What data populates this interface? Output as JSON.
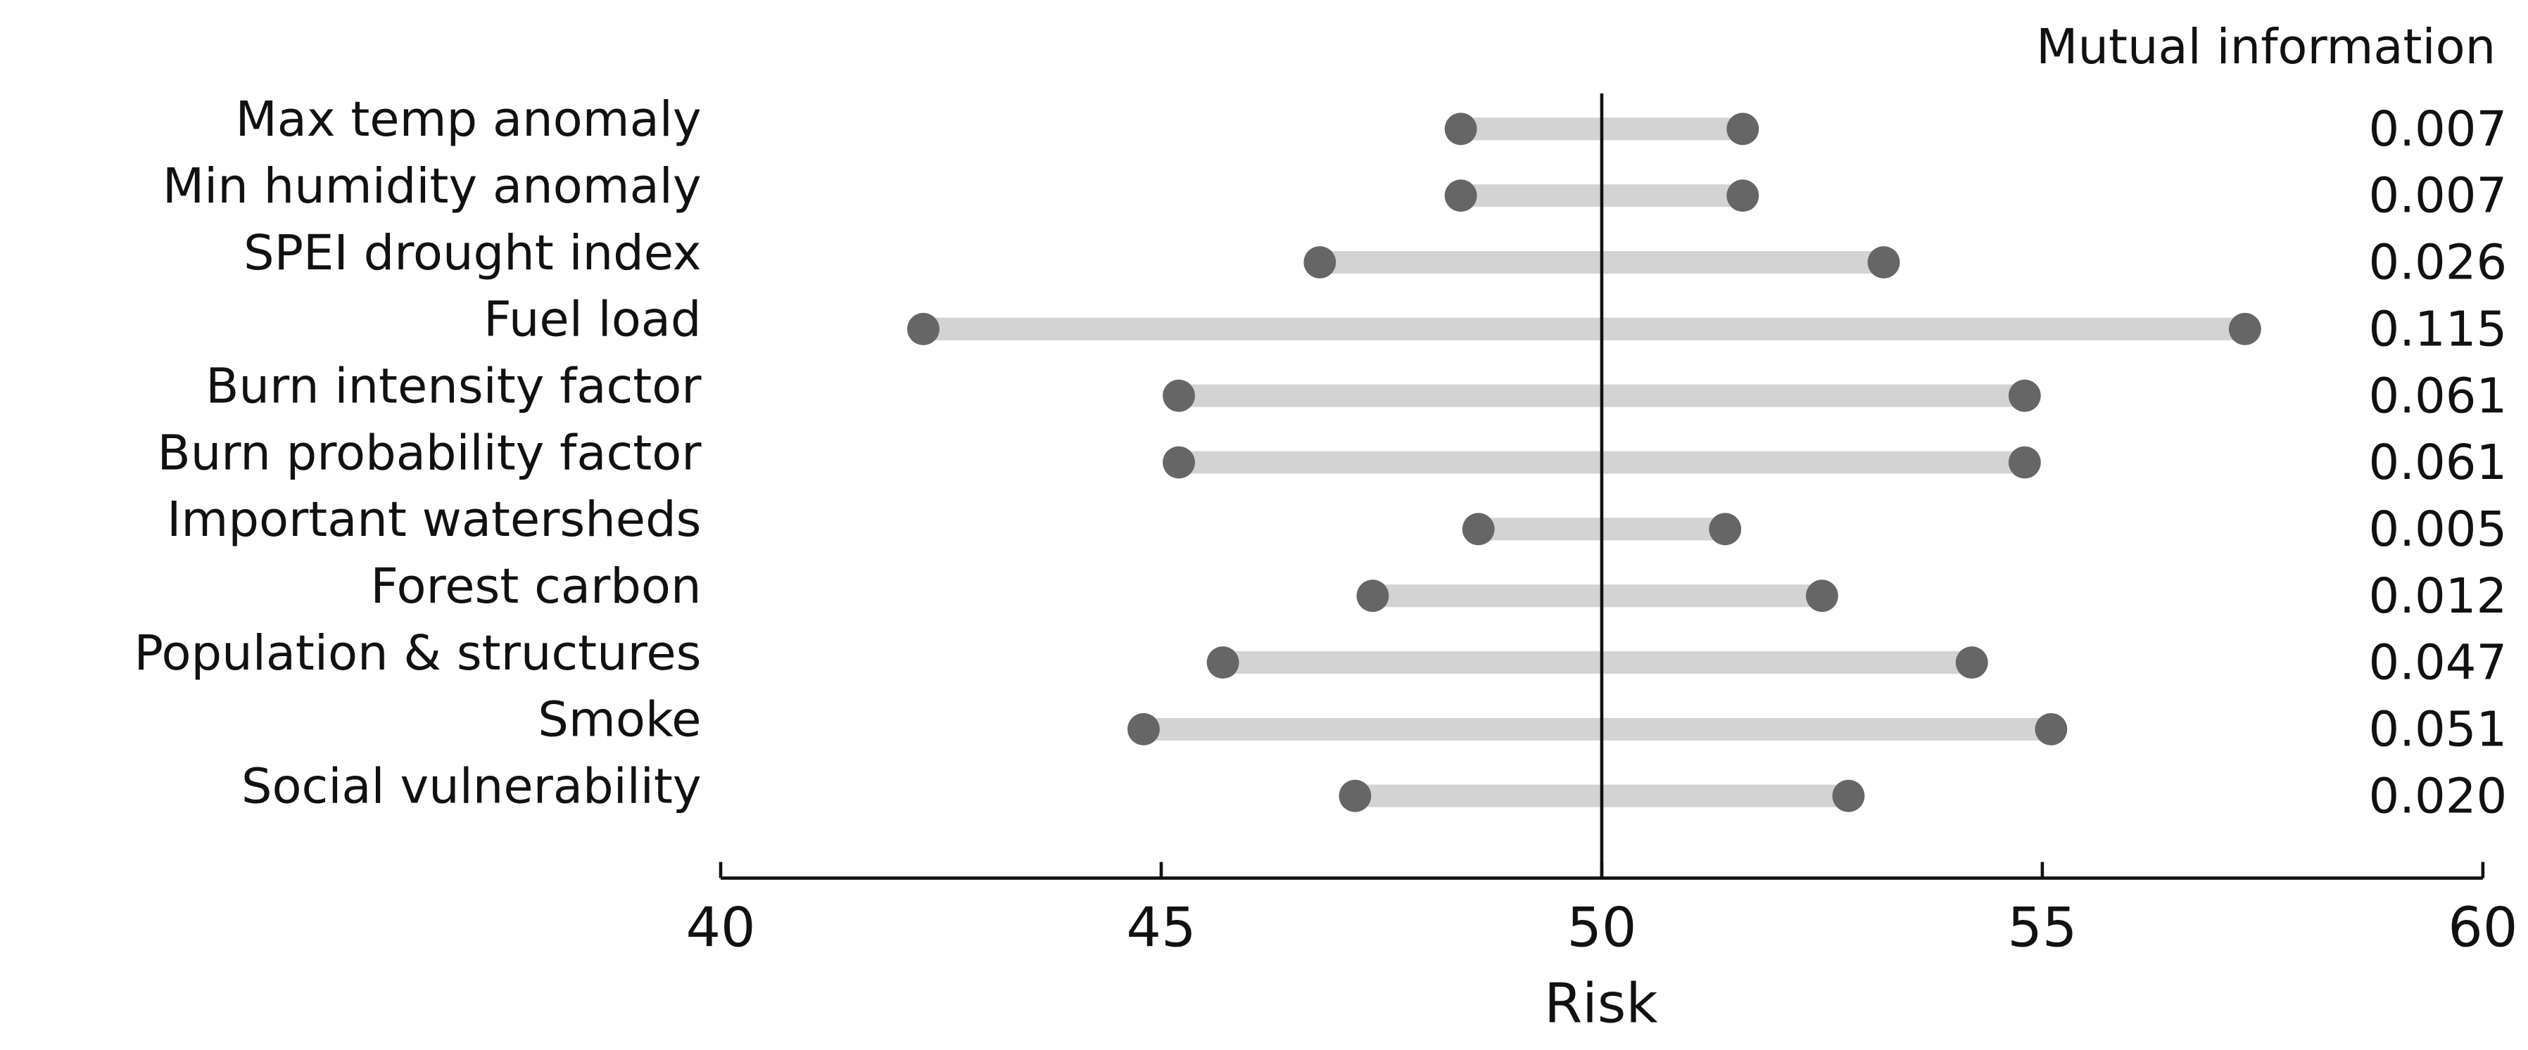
{
  "chart_data": {
    "type": "dumbbell",
    "x_label": "Risk",
    "categories": [
      "Max temp anomaly",
      "Min humidity anomaly",
      "SPEI drought index",
      "Fuel load",
      "Burn intensity factor",
      "Burn probability factor",
      "Important watersheds",
      "Forest carbon",
      "Population & structures",
      "Smoke",
      "Social vulnerability"
    ],
    "low": [
      48.4,
      48.4,
      46.8,
      42.3,
      45.2,
      45.2,
      48.6,
      47.4,
      45.7,
      44.8,
      47.2
    ],
    "high": [
      51.6,
      51.6,
      53.2,
      57.3,
      54.8,
      54.8,
      51.4,
      52.5,
      54.2,
      55.1,
      52.8
    ],
    "side_column": {
      "title": "Mutual information",
      "labels": [
        "0.007",
        "0.007",
        "0.026",
        "0.115",
        "0.061",
        "0.061",
        "0.005",
        "0.012",
        "0.047",
        "0.051",
        "0.020"
      ]
    },
    "xlim": [
      40,
      60
    ],
    "xticks": [
      40,
      45,
      50,
      55,
      60
    ],
    "reference_line": 50,
    "dot_color": "#666666",
    "bar_color": "#d3d3d3"
  }
}
